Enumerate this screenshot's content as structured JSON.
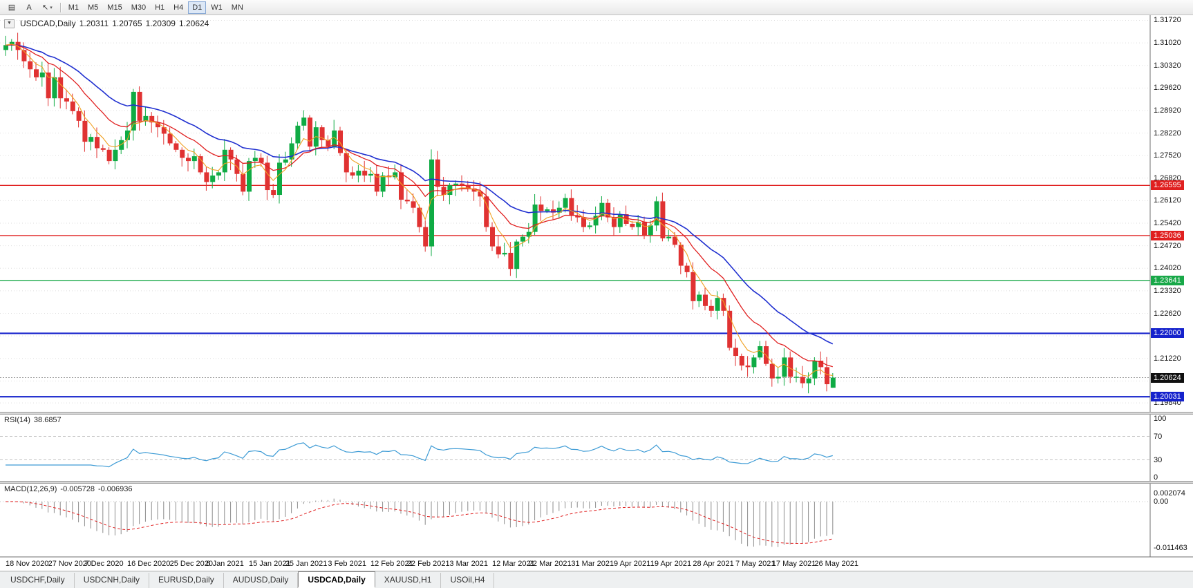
{
  "toolbar": {
    "buttons": [
      {
        "name": "tile-windows-button",
        "icon": "▤"
      },
      {
        "name": "auto-arrange-button",
        "icon": "A"
      },
      {
        "name": "cursor-tool-button",
        "icon": "↖",
        "caret": "▾"
      }
    ],
    "timeframes": [
      "M1",
      "M5",
      "M15",
      "M30",
      "H1",
      "H4",
      "D1",
      "W1",
      "MN"
    ],
    "active_timeframe": "D1"
  },
  "chart": {
    "collapse_icon": "▼",
    "symbol_timeframe": "USDCAD,Daily",
    "open": "1.20311",
    "high": "1.20765",
    "low": "1.20309",
    "close": "1.20624"
  },
  "price_axis": {
    "labels": [
      "1.31720",
      "1.31020",
      "1.30320",
      "1.29620",
      "1.28920",
      "1.28220",
      "1.27520",
      "1.26820",
      "1.26120",
      "1.25420",
      "1.24720",
      "1.24020",
      "1.23320",
      "1.22620",
      "1.21920",
      "1.21220",
      "1.20520",
      "1.19840"
    ],
    "badges": [
      {
        "text": "1.26595",
        "color": "#e02020"
      },
      {
        "text": "1.25036",
        "color": "#e02020"
      },
      {
        "text": "1.23641",
        "color": "#18a848"
      },
      {
        "text": "1.22000",
        "color": "#1522cc"
      },
      {
        "text": "1.20624",
        "color": "#101010"
      },
      {
        "text": "1.20031",
        "color": "#1522cc"
      }
    ]
  },
  "levels": [
    {
      "price": 1.26595,
      "color": "#e02020",
      "width": 1.4
    },
    {
      "price": 1.25036,
      "color": "#e02020",
      "width": 1.4
    },
    {
      "price": 1.23641,
      "color": "#18a848",
      "width": 1.4
    },
    {
      "price": 1.22,
      "color": "#1522cc",
      "width": 2.2
    },
    {
      "price": 1.20031,
      "color": "#1522cc",
      "width": 2.2
    }
  ],
  "current_price": 1.20624,
  "rsi_panel": {
    "label": "RSI(14)",
    "value": "38.6857",
    "period": 14,
    "levels": [
      70,
      30
    ],
    "axis_labels": [
      "100",
      "70",
      "30",
      "0"
    ],
    "line_color": "#3d9bd5"
  },
  "macd_panel": {
    "label": "MACD(12,26,9)",
    "main_value": "-0.005728",
    "signal_value": "-0.006936",
    "fast": 12,
    "slow": 26,
    "signal": 9,
    "axis_labels": [
      "0.002074",
      "0.00",
      "-0.011463"
    ],
    "hist_color": "#8c8c8c",
    "signal_color": "#e02020"
  },
  "date_axis": [
    {
      "label": "18 Nov 2020",
      "bar": 0
    },
    {
      "label": "27 Nov 2020",
      "bar": 7
    },
    {
      "label": "7 Dec 2020",
      "bar": 13
    },
    {
      "label": "16 Dec 2020",
      "bar": 20
    },
    {
      "label": "25 Dec 2020",
      "bar": 27
    },
    {
      "label": "6 Jan 2021",
      "bar": 33
    },
    {
      "label": "15 Jan 2021",
      "bar": 40
    },
    {
      "label": "25 Jan 2021",
      "bar": 46
    },
    {
      "label": "3 Feb 2021",
      "bar": 53
    },
    {
      "label": "12 Feb 2021",
      "bar": 60
    },
    {
      "label": "22 Feb 2021",
      "bar": 66
    },
    {
      "label": "3 Mar 2021",
      "bar": 73
    },
    {
      "label": "12 Mar 2021",
      "bar": 80
    },
    {
      "label": "22 Mar 2021",
      "bar": 86
    },
    {
      "label": "31 Mar 2021",
      "bar": 93
    },
    {
      "label": "9 Apr 2021",
      "bar": 100
    },
    {
      "label": "19 Apr 2021",
      "bar": 106
    },
    {
      "label": "28 Apr 2021",
      "bar": 113
    },
    {
      "label": "7 May 2021",
      "bar": 120
    },
    {
      "label": "17 May 2021",
      "bar": 126
    },
    {
      "label": "26 May 2021",
      "bar": 133
    }
  ],
  "tabs": [
    "USDCHF,Daily",
    "USDCNH,Daily",
    "EURUSD,Daily",
    "AUDUSD,Daily",
    "USDCAD,Daily",
    "XAUUSD,H1",
    "USOil,H4"
  ],
  "active_tab": "USDCAD,Daily",
  "chart_data": {
    "type": "candlestick",
    "title": "USDCAD Daily",
    "symbol": "USDCAD",
    "timeframe": "D1",
    "ylim": [
      1.1952,
      1.3188
    ],
    "first_open": 1.308,
    "closes": [
      1.3095,
      1.3105,
      1.308,
      1.3045,
      1.302,
      1.2995,
      1.301,
      1.293,
      1.2995,
      1.293,
      1.292,
      1.289,
      1.286,
      1.2795,
      1.281,
      1.2775,
      1.277,
      1.2735,
      1.277,
      1.28,
      1.283,
      1.295,
      1.286,
      1.2875,
      1.2855,
      1.284,
      1.282,
      1.279,
      1.277,
      1.2745,
      1.2735,
      1.275,
      1.27,
      1.267,
      1.269,
      1.27,
      1.277,
      1.274,
      1.2695,
      1.264,
      1.2735,
      1.2745,
      1.273,
      1.2645,
      1.263,
      1.273,
      1.274,
      1.279,
      1.2845,
      1.287,
      1.278,
      1.284,
      1.28,
      1.278,
      1.283,
      1.276,
      1.27,
      1.269,
      1.2705,
      1.269,
      1.2695,
      1.264,
      1.269,
      1.2685,
      1.27,
      1.2615,
      1.261,
      1.259,
      1.253,
      1.247,
      1.274,
      1.2655,
      1.263,
      1.266,
      1.2665,
      1.266,
      1.265,
      1.264,
      1.2625,
      1.253,
      1.247,
      1.2445,
      1.245,
      1.24,
      1.2485,
      1.25,
      1.2515,
      1.26,
      1.258,
      1.2585,
      1.2575,
      1.259,
      1.262,
      1.2565,
      1.256,
      1.253,
      1.2535,
      1.2565,
      1.2605,
      1.256,
      1.253,
      1.257,
      1.254,
      1.253,
      1.2545,
      1.2505,
      1.2535,
      1.261,
      1.2495,
      1.25,
      1.2475,
      1.241,
      1.239,
      1.23,
      1.232,
      1.2285,
      1.227,
      1.231,
      1.227,
      1.2155,
      1.213,
      1.21,
      1.2095,
      1.2125,
      1.216,
      1.2105,
      1.206,
      1.2065,
      1.2125,
      1.2065,
      1.2065,
      1.2045,
      1.206,
      1.2115,
      1.2095,
      1.2042,
      1.20624
    ],
    "last": {
      "open": 1.20311,
      "high": 1.20765,
      "low": 1.20309,
      "close": 1.20624
    },
    "up_color": "#0fab44",
    "down_color": "#e03232",
    "ma": {
      "fast_period": 5,
      "fast_color": "#f0a020",
      "mid_period": 13,
      "mid_color": "#e02020",
      "slow_period": 25,
      "slow_color": "#2030d0"
    }
  }
}
